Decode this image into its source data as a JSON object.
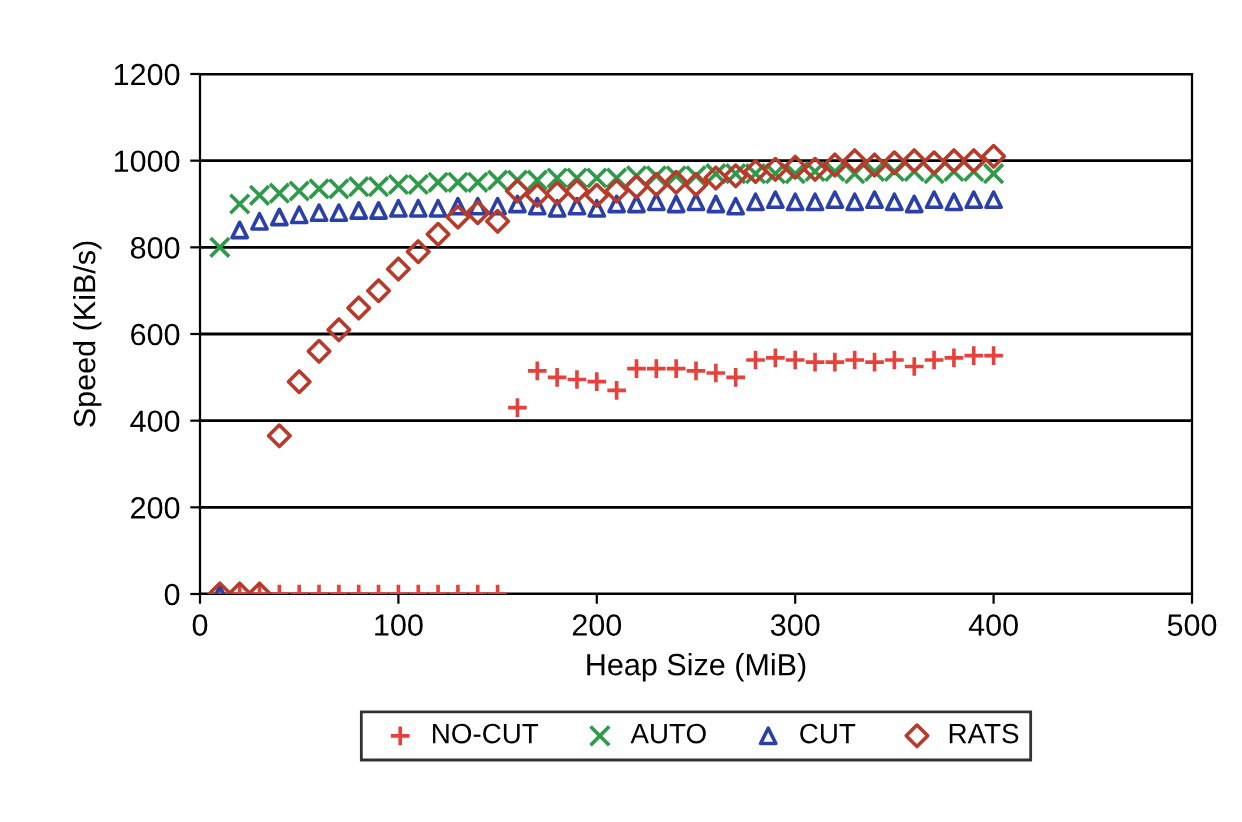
{
  "chart_data": {
    "type": "scatter",
    "xlabel": "Heap Size (MiB)",
    "ylabel": "Speed (KiB/s)",
    "x": [
      10,
      20,
      30,
      40,
      50,
      60,
      70,
      80,
      90,
      100,
      110,
      120,
      130,
      140,
      150,
      160,
      170,
      180,
      190,
      200,
      210,
      220,
      230,
      240,
      250,
      260,
      270,
      280,
      290,
      300,
      310,
      320,
      330,
      340,
      350,
      360,
      370,
      380,
      390,
      400
    ],
    "xlim": [
      0,
      500
    ],
    "xticks": [
      0,
      100,
      200,
      300,
      400,
      500
    ],
    "ylim": [
      0,
      1200
    ],
    "yticks": [
      0,
      200,
      400,
      600,
      800,
      1000,
      1200
    ],
    "grid": "y",
    "legend": "bottom",
    "series": [
      {
        "name": "NO-CUT",
        "color": "#e8413c",
        "marker": "plus",
        "values": [
          0,
          0,
          0,
          0,
          0,
          0,
          0,
          0,
          0,
          0,
          0,
          0,
          0,
          0,
          0,
          430,
          515,
          500,
          495,
          490,
          470,
          520,
          520,
          520,
          515,
          510,
          500,
          540,
          545,
          540,
          535,
          535,
          540,
          535,
          540,
          525,
          540,
          545,
          550,
          550
        ]
      },
      {
        "name": "AUTO",
        "color": "#2e9a4a",
        "marker": "cross",
        "values": [
          800,
          900,
          920,
          925,
          930,
          935,
          935,
          940,
          940,
          945,
          945,
          950,
          950,
          950,
          955,
          955,
          955,
          960,
          960,
          960,
          960,
          965,
          965,
          965,
          965,
          970,
          970,
          970,
          970,
          970,
          975,
          975,
          970,
          975,
          975,
          975,
          970,
          975,
          975,
          970
        ]
      },
      {
        "name": "CUT",
        "color": "#2b3fa8",
        "marker": "triangle",
        "values": [
          0,
          840,
          860,
          870,
          875,
          880,
          880,
          885,
          885,
          890,
          890,
          890,
          895,
          895,
          895,
          900,
          895,
          890,
          895,
          890,
          900,
          900,
          905,
          900,
          905,
          900,
          895,
          905,
          910,
          905,
          905,
          910,
          905,
          910,
          905,
          900,
          910,
          905,
          910,
          910
        ]
      },
      {
        "name": "RATS",
        "color": "#b83a2a",
        "marker": "diamond",
        "values": [
          0,
          0,
          0,
          365,
          490,
          560,
          610,
          660,
          700,
          750,
          790,
          830,
          870,
          880,
          860,
          930,
          920,
          925,
          930,
          920,
          930,
          940,
          945,
          950,
          945,
          960,
          965,
          975,
          980,
          985,
          980,
          990,
          1000,
          990,
          995,
          1000,
          995,
          1000,
          1000,
          1010
        ]
      }
    ]
  }
}
